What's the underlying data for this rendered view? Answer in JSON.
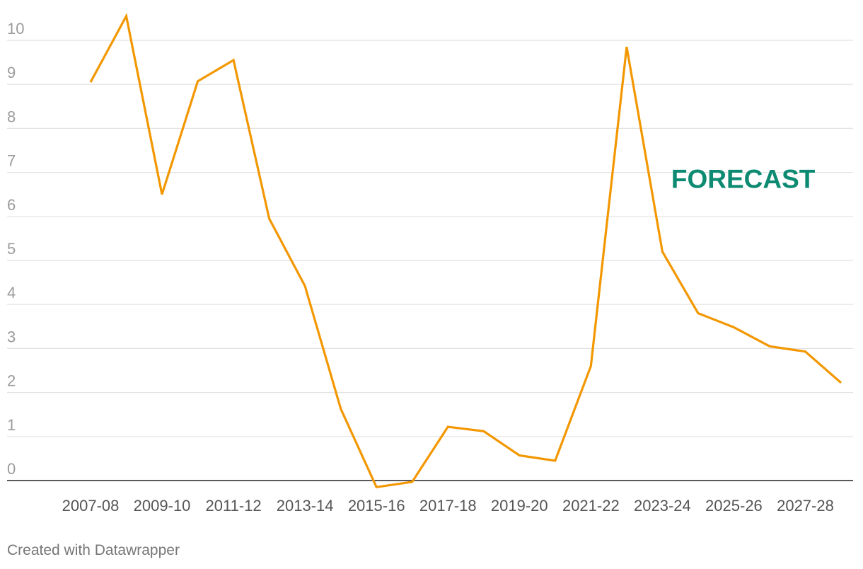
{
  "chart_data": {
    "type": "line",
    "x": [
      "2007-08",
      "2008-09",
      "2009-10",
      "2010-11",
      "2011-12",
      "2012-13",
      "2013-14",
      "2014-15",
      "2015-16",
      "2016-17",
      "2017-18",
      "2018-19",
      "2019-20",
      "2020-21",
      "2021-22",
      "2022-23",
      "2023-24",
      "2024-25",
      "2025-26",
      "2026-27",
      "2027-28",
      "2028-29"
    ],
    "x_tick_labels": [
      "2007-08",
      "2009-10",
      "2011-12",
      "2013-14",
      "2015-16",
      "2017-18",
      "2019-20",
      "2021-22",
      "2023-24",
      "2025-26",
      "2027-28"
    ],
    "series": [
      {
        "values": [
          9.05,
          10.55,
          6.5,
          9.07,
          9.55,
          5.95,
          4.42,
          1.63,
          -0.15,
          -0.03,
          1.22,
          1.12,
          0.57,
          0.45,
          2.6,
          9.85,
          5.2,
          3.8,
          3.48,
          3.05,
          2.93,
          2.22
        ]
      }
    ],
    "y_ticks": [
      0,
      1,
      2,
      3,
      4,
      5,
      6,
      7,
      8,
      9,
      10
    ],
    "ylim": [
      -0.2,
      10.8
    ],
    "grid": true,
    "line_color": "#f39700",
    "annotation": {
      "text": "FORECAST",
      "color": "#0d8a72",
      "x": "2024-25",
      "y": 6.65
    }
  },
  "credit": "Created with Datawrapper"
}
